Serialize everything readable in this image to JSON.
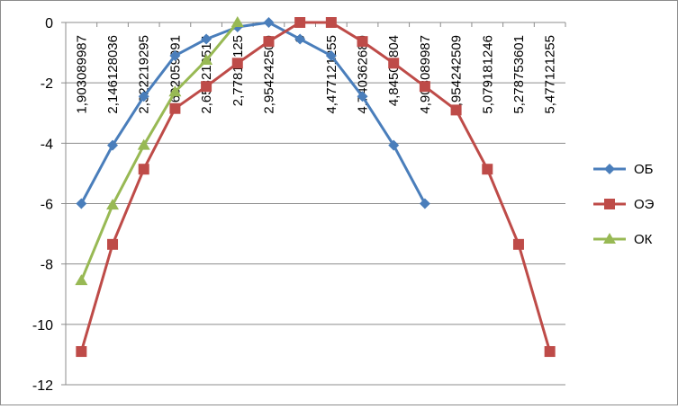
{
  "chart_data": {
    "type": "line",
    "title": "",
    "xlabel": "",
    "ylabel": "",
    "categories": [
      "1,903089987",
      "2,146128036",
      "2,322219295",
      "2,602059991",
      "2,653212514",
      "2,77815125",
      "2,954242509",
      "3",
      "4,477121255",
      "4,740362689",
      "4,84509804",
      "4,903089987",
      "4,954242509",
      "5,079181246",
      "5,278753601",
      "5,477121255"
    ],
    "ylim": [
      -12,
      0
    ],
    "yticks": [
      0,
      -2,
      -4,
      -6,
      -8,
      -10,
      -12
    ],
    "ytick_labels": [
      "0",
      "-2",
      "-4",
      "-6",
      "-8",
      "-10",
      "-12"
    ],
    "grid": "horizontal",
    "legend_position": "right",
    "series": [
      {
        "name": "ОБ",
        "color": "#4a7ebb",
        "marker": "diamond",
        "values": [
          -6,
          -4.07,
          -2.45,
          -1.1,
          -0.55,
          -0.15,
          0,
          -0.55,
          -1.1,
          -2.45,
          -4.07,
          -6,
          null,
          null,
          null,
          null
        ]
      },
      {
        "name": "ОЭ",
        "color": "#be4b48",
        "marker": "square",
        "values": [
          -10.9,
          -7.35,
          -4.86,
          -2.85,
          -2.12,
          -1.35,
          -0.63,
          0,
          0,
          -0.63,
          -1.35,
          -2.12,
          -2.9,
          -4.86,
          -7.35,
          -10.9
        ]
      },
      {
        "name": "ОК",
        "color": "#98b954",
        "marker": "triangle",
        "values": [
          -8.55,
          -6.05,
          -4.07,
          -2.3,
          -1.25,
          0,
          null,
          null,
          null,
          null,
          null,
          null,
          null,
          null,
          null,
          null
        ]
      }
    ]
  }
}
